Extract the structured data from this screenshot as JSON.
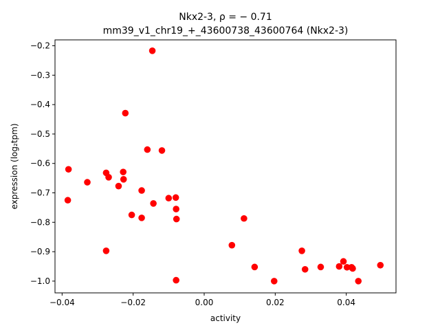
{
  "chart_data": {
    "type": "scatter",
    "title_line1": "Nkx2-3, ρ = − 0.71",
    "title_line2": "mm39_v1_chr19_+_43600738_43600764 (Nkx2-3)",
    "xlabel": "activity",
    "ylabel": "expression (log₂tpm)",
    "xlim": [
      -0.042,
      0.054
    ],
    "ylim": [
      -1.04,
      -0.18
    ],
    "xticks": [
      {
        "value": -0.04,
        "label": "−0.04"
      },
      {
        "value": -0.02,
        "label": "−0.02"
      },
      {
        "value": 0.0,
        "label": "0.00"
      },
      {
        "value": 0.02,
        "label": "0.02"
      },
      {
        "value": 0.04,
        "label": "0.04"
      }
    ],
    "yticks": [
      {
        "value": -0.2,
        "label": "−0.2"
      },
      {
        "value": -0.3,
        "label": "−0.3"
      },
      {
        "value": -0.4,
        "label": "−0.4"
      },
      {
        "value": -0.5,
        "label": "−0.5"
      },
      {
        "value": -0.6,
        "label": "−0.6"
      },
      {
        "value": -0.7,
        "label": "−0.7"
      },
      {
        "value": -0.8,
        "label": "−0.8"
      },
      {
        "value": -0.9,
        "label": "−0.9"
      },
      {
        "value": -1.0,
        "label": "−1.0"
      }
    ],
    "marker_color": "#ff0000",
    "grid": false,
    "points": [
      {
        "x": -0.0146,
        "y": -0.217
      },
      {
        "x": -0.0222,
        "y": -0.429
      },
      {
        "x": -0.016,
        "y": -0.553
      },
      {
        "x": -0.0119,
        "y": -0.556
      },
      {
        "x": -0.0382,
        "y": -0.62
      },
      {
        "x": -0.0276,
        "y": -0.632
      },
      {
        "x": -0.0228,
        "y": -0.629
      },
      {
        "x": -0.0269,
        "y": -0.647
      },
      {
        "x": -0.0227,
        "y": -0.654
      },
      {
        "x": -0.0329,
        "y": -0.664
      },
      {
        "x": -0.0241,
        "y": -0.677
      },
      {
        "x": -0.0176,
        "y": -0.692
      },
      {
        "x": -0.0384,
        "y": -0.725
      },
      {
        "x": -0.01,
        "y": -0.718
      },
      {
        "x": -0.008,
        "y": -0.716
      },
      {
        "x": -0.0143,
        "y": -0.736
      },
      {
        "x": -0.0079,
        "y": -0.755
      },
      {
        "x": -0.0204,
        "y": -0.775
      },
      {
        "x": -0.0176,
        "y": -0.785
      },
      {
        "x": -0.0078,
        "y": -0.789
      },
      {
        "x": 0.0112,
        "y": -0.787
      },
      {
        "x": 0.0078,
        "y": -0.878
      },
      {
        "x": -0.0276,
        "y": -0.897
      },
      {
        "x": 0.0275,
        "y": -0.897
      },
      {
        "x": 0.0392,
        "y": -0.933
      },
      {
        "x": 0.0142,
        "y": -0.952
      },
      {
        "x": 0.0328,
        "y": -0.952
      },
      {
        "x": 0.038,
        "y": -0.95
      },
      {
        "x": 0.0402,
        "y": -0.953
      },
      {
        "x": 0.0415,
        "y": -0.953
      },
      {
        "x": 0.0418,
        "y": -0.957
      },
      {
        "x": 0.0284,
        "y": -0.96
      },
      {
        "x": 0.0496,
        "y": -0.946
      },
      {
        "x": -0.0079,
        "y": -0.997
      },
      {
        "x": 0.0197,
        "y": -1.0
      },
      {
        "x": 0.0434,
        "y": -1.0
      }
    ]
  }
}
